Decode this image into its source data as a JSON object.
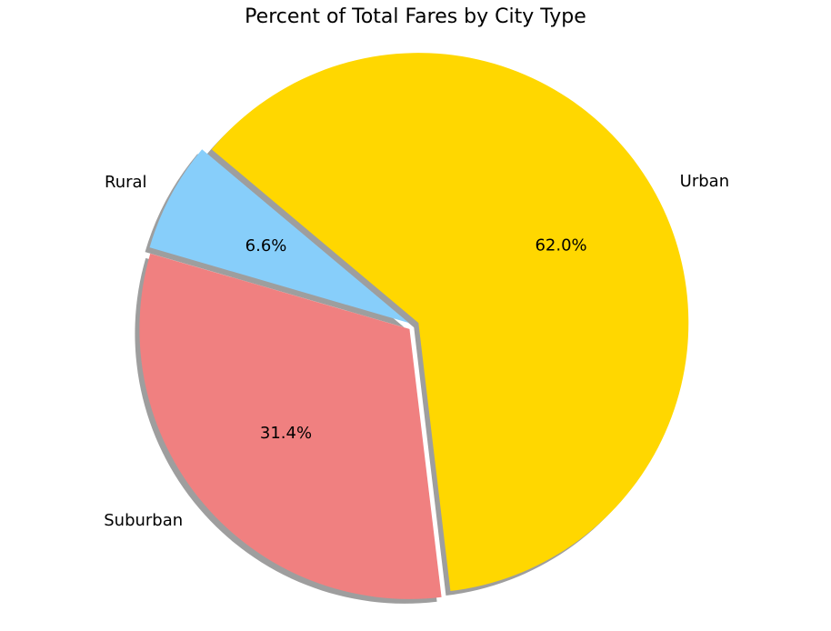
{
  "chart_data": {
    "type": "pie",
    "title": "Percent of Total Fares by City Type",
    "slices": [
      {
        "label": "Rural",
        "value": 6.6,
        "pct_label": "6.6%",
        "color": "#87CEFA"
      },
      {
        "label": "Suburban",
        "value": 31.4,
        "pct_label": "31.4%",
        "color": "#F08080"
      },
      {
        "label": "Urban",
        "value": 62.0,
        "pct_label": "62.0%",
        "color": "#FFD700"
      }
    ],
    "shadow": true,
    "legend": "none"
  }
}
